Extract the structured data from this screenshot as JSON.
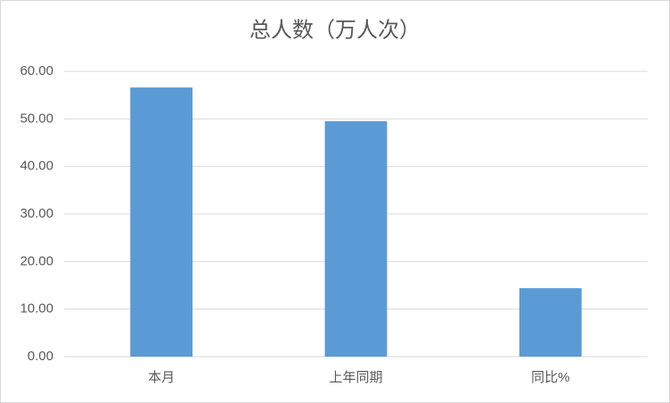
{
  "chart_data": {
    "type": "bar",
    "title": "总人数（万人次）",
    "categories": [
      "本月",
      "上年同期",
      "同比%"
    ],
    "values": [
      56.6,
      49.5,
      14.4
    ],
    "color": "#5b9bd5",
    "ylim": [
      0,
      60
    ],
    "yticks": [
      {
        "value": 0,
        "label": "0.00"
      },
      {
        "value": 10,
        "label": "10.00"
      },
      {
        "value": 20,
        "label": "20.00"
      },
      {
        "value": 30,
        "label": "30.00"
      },
      {
        "value": 40,
        "label": "40.00"
      },
      {
        "value": 50,
        "label": "50.00"
      },
      {
        "value": 60,
        "label": "60.00"
      }
    ],
    "grid": true
  }
}
